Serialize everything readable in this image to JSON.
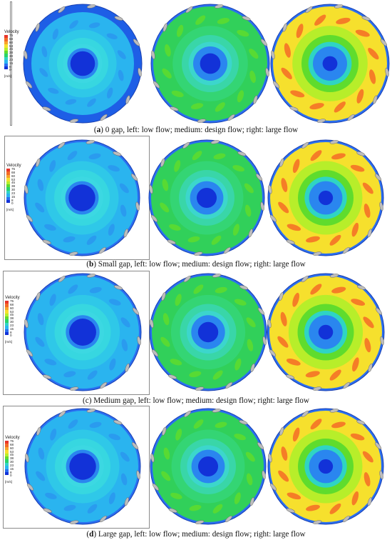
{
  "legend": {
    "title": "Velocity",
    "unit": "[m/s]",
    "ticks_a": [
      "75",
      "68",
      "60",
      "53",
      "45",
      "38",
      "30",
      "23",
      "15",
      "8",
      "0"
    ],
    "ticks_b": [
      "75",
      "68",
      "60",
      "53",
      "45",
      "38",
      "30",
      "23",
      "15",
      "8",
      "0"
    ],
    "ticks_c": [
      "75",
      "68",
      "60",
      "53",
      "45",
      "38",
      "30",
      "23",
      "15",
      "8",
      "0"
    ],
    "ticks_d": [
      "75",
      "68",
      "60",
      "53",
      "45",
      "38",
      "30",
      "23",
      "15",
      "8",
      "0"
    ],
    "colors": [
      "#e8352a",
      "#f46b27",
      "#f9a22a",
      "#f6e02d",
      "#b7ee2a",
      "#5fdc2d",
      "#29d36a",
      "#2fd4c4",
      "#2ab6ef",
      "#2a6ef1",
      "#1232d8"
    ]
  },
  "panels": [
    {
      "letter": "a",
      "caption": " 0 gap, left: low flow; medium: design flow; right: large flow",
      "flows": [
        "low",
        "design",
        "large"
      ]
    },
    {
      "letter": "b",
      "caption": " Small gap, left: low flow; medium: design flow; right: large flow",
      "flows": [
        "low",
        "design",
        "large"
      ]
    },
    {
      "letter": "c",
      "caption": " Medium gap, left: low flow; medium: design flow; right: large flow",
      "flows": [
        "low",
        "design",
        "large"
      ]
    },
    {
      "letter": "d",
      "caption": " Large gap, left: low flow; medium: design flow; right: large flow",
      "flows": [
        "low",
        "design",
        "large"
      ]
    }
  ]
}
